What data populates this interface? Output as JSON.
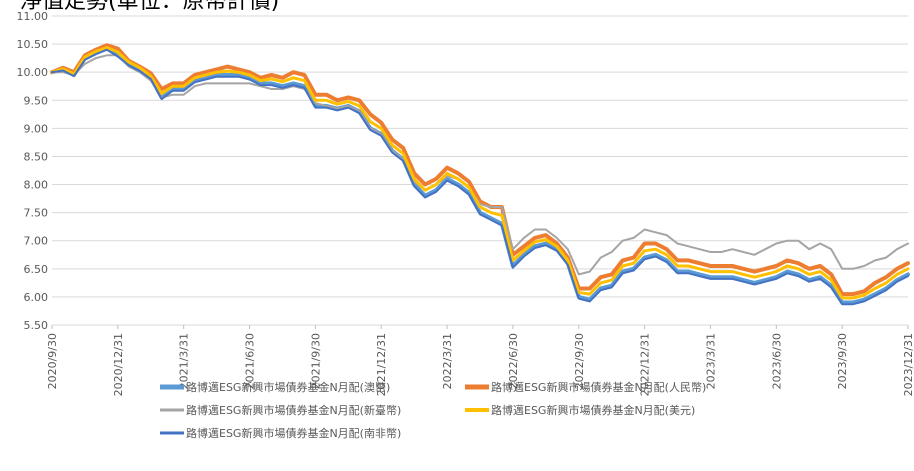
{
  "chart_data": {
    "type": "line",
    "title": "",
    "xlabel": "",
    "ylabel": "",
    "ylim": [
      5.5,
      11.0
    ],
    "yticks": [
      "11.00",
      "10.50",
      "10.00",
      "9.50",
      "9.00",
      "8.50",
      "8.00",
      "7.50",
      "7.00",
      "6.50",
      "6.00",
      "5.50"
    ],
    "x_tick_labels": [
      "2020/9/30",
      "2020/12/31",
      "2021/3/31",
      "2021/6/30",
      "2021/9/30",
      "2021/12/31",
      "2022/3/31",
      "2022/6/30",
      "2022/9/30",
      "2022/12/31",
      "2023/3/31",
      "2023/6/30",
      "2023/9/30",
      "2023/12/31"
    ],
    "grid": "horizontal",
    "legend_position": "bottom",
    "x": [
      "2020/9/30",
      "2020/10/15",
      "2020/10/31",
      "2020/11/15",
      "2020/11/30",
      "2020/12/15",
      "2020/12/31",
      "2021/1/15",
      "2021/1/31",
      "2021/2/15",
      "2021/2/28",
      "2021/3/15",
      "2021/3/31",
      "2021/4/15",
      "2021/4/30",
      "2021/5/15",
      "2021/5/31",
      "2021/6/15",
      "2021/6/30",
      "2021/7/15",
      "2021/7/31",
      "2021/8/15",
      "2021/8/31",
      "2021/9/15",
      "2021/9/30",
      "2021/10/15",
      "2021/10/31",
      "2021/11/15",
      "2021/11/30",
      "2021/12/15",
      "2021/12/31",
      "2022/1/15",
      "2022/1/31",
      "2022/2/15",
      "2022/2/28",
      "2022/3/15",
      "2022/3/31",
      "2022/4/15",
      "2022/4/30",
      "2022/5/15",
      "2022/5/31",
      "2022/6/15",
      "2022/6/30",
      "2022/7/15",
      "2022/7/31",
      "2022/8/15",
      "2022/8/31",
      "2022/9/15",
      "2022/9/30",
      "2022/10/15",
      "2022/10/31",
      "2022/11/15",
      "2022/11/30",
      "2022/12/15",
      "2022/12/31",
      "2023/1/15",
      "2023/1/31",
      "2023/2/15",
      "2023/2/28",
      "2023/3/15",
      "2023/3/31",
      "2023/4/15",
      "2023/4/30",
      "2023/5/15",
      "2023/5/31",
      "2023/6/15",
      "2023/6/30",
      "2023/7/15",
      "2023/7/31",
      "2023/8/15",
      "2023/8/31",
      "2023/9/15",
      "2023/9/30",
      "2023/10/15",
      "2023/10/31",
      "2023/11/15",
      "2023/11/30",
      "2023/12/15",
      "2023/12/31"
    ],
    "series": [
      {
        "name": "路博邁ESG新興市場債券基金N月配(澳幣)",
        "color": "#5B9BD5",
        "width": 4,
        "values": [
          10.0,
          10.05,
          9.95,
          10.25,
          10.35,
          10.42,
          10.3,
          10.15,
          10.05,
          9.9,
          9.55,
          9.7,
          9.7,
          9.85,
          9.9,
          9.95,
          9.95,
          9.95,
          9.9,
          9.8,
          9.8,
          9.75,
          9.8,
          9.75,
          9.4,
          9.4,
          9.35,
          9.4,
          9.3,
          9.0,
          8.9,
          8.6,
          8.45,
          8.0,
          7.8,
          7.9,
          8.1,
          8.0,
          7.85,
          7.5,
          7.4,
          7.3,
          6.55,
          6.75,
          6.9,
          6.95,
          6.85,
          6.6,
          6.0,
          5.95,
          6.15,
          6.2,
          6.45,
          6.5,
          6.7,
          6.75,
          6.65,
          6.45,
          6.45,
          6.4,
          6.35,
          6.35,
          6.35,
          6.3,
          6.25,
          6.3,
          6.35,
          6.45,
          6.4,
          6.3,
          6.35,
          6.2,
          5.9,
          5.9,
          5.95,
          6.05,
          6.15,
          6.3,
          6.4
        ]
      },
      {
        "name": "路博邁ESG新興市場債券基金N月配(人民幣)",
        "color": "#ED7D31",
        "width": 4,
        "values": [
          10.0,
          10.08,
          10.0,
          10.3,
          10.4,
          10.48,
          10.42,
          10.2,
          10.1,
          9.98,
          9.7,
          9.8,
          9.8,
          9.95,
          10.0,
          10.05,
          10.1,
          10.05,
          10.0,
          9.9,
          9.95,
          9.9,
          10.0,
          9.95,
          9.6,
          9.6,
          9.5,
          9.55,
          9.5,
          9.25,
          9.1,
          8.8,
          8.65,
          8.2,
          8.0,
          8.1,
          8.3,
          8.2,
          8.05,
          7.7,
          7.6,
          7.6,
          6.75,
          6.9,
          7.05,
          7.1,
          6.95,
          6.7,
          6.15,
          6.15,
          6.35,
          6.4,
          6.65,
          6.7,
          6.95,
          6.95,
          6.85,
          6.65,
          6.65,
          6.6,
          6.55,
          6.55,
          6.55,
          6.5,
          6.45,
          6.5,
          6.55,
          6.65,
          6.6,
          6.5,
          6.55,
          6.4,
          6.05,
          6.05,
          6.1,
          6.25,
          6.35,
          6.5,
          6.6
        ]
      },
      {
        "name": "路博邁ESG新興市場債券基金N月配(新臺幣)",
        "color": "#A5A5A5",
        "width": 2,
        "values": [
          10.0,
          10.0,
          9.95,
          10.15,
          10.25,
          10.3,
          10.3,
          10.1,
          10.0,
          9.85,
          9.55,
          9.6,
          9.6,
          9.75,
          9.8,
          9.8,
          9.8,
          9.8,
          9.8,
          9.75,
          9.7,
          9.7,
          9.75,
          9.7,
          9.45,
          9.4,
          9.35,
          9.4,
          9.3,
          9.0,
          8.9,
          8.6,
          8.45,
          8.05,
          7.9,
          8.0,
          8.15,
          8.1,
          7.95,
          7.65,
          7.6,
          7.6,
          6.85,
          7.05,
          7.2,
          7.2,
          7.05,
          6.85,
          6.4,
          6.45,
          6.7,
          6.8,
          7.0,
          7.05,
          7.2,
          7.15,
          7.1,
          6.95,
          6.9,
          6.85,
          6.8,
          6.8,
          6.85,
          6.8,
          6.75,
          6.85,
          6.95,
          7.0,
          7.0,
          6.85,
          6.95,
          6.85,
          6.5,
          6.5,
          6.55,
          6.65,
          6.7,
          6.85,
          6.95
        ]
      },
      {
        "name": "路博邁ESG新興市場債券基金N月配(美元)",
        "color": "#FFC000",
        "width": 3,
        "values": [
          10.0,
          10.06,
          9.97,
          10.27,
          10.37,
          10.44,
          10.36,
          10.18,
          10.08,
          9.93,
          9.62,
          9.75,
          9.75,
          9.9,
          9.95,
          10.0,
          10.02,
          10.0,
          9.95,
          9.85,
          9.88,
          9.83,
          9.9,
          9.85,
          9.5,
          9.5,
          9.43,
          9.48,
          9.4,
          9.12,
          9.0,
          8.7,
          8.55,
          8.1,
          7.9,
          8.0,
          8.2,
          8.1,
          7.95,
          7.6,
          7.5,
          7.45,
          6.65,
          6.82,
          6.98,
          7.02,
          6.9,
          6.65,
          6.08,
          6.05,
          6.25,
          6.3,
          6.55,
          6.6,
          6.82,
          6.85,
          6.75,
          6.55,
          6.55,
          6.5,
          6.45,
          6.45,
          6.45,
          6.4,
          6.35,
          6.4,
          6.45,
          6.55,
          6.5,
          6.4,
          6.45,
          6.3,
          5.98,
          5.98,
          6.03,
          6.15,
          6.25,
          6.4,
          6.5
        ]
      },
      {
        "name": "路博邁ESG新興市場債券基金N月配(南非幣)",
        "color": "#4472C4",
        "width": 2,
        "values": [
          10.0,
          10.03,
          9.93,
          10.22,
          10.32,
          10.4,
          10.28,
          10.12,
          10.02,
          9.88,
          9.52,
          9.67,
          9.67,
          9.82,
          9.87,
          9.92,
          9.92,
          9.92,
          9.87,
          9.77,
          9.77,
          9.72,
          9.77,
          9.72,
          9.37,
          9.37,
          9.32,
          9.37,
          9.27,
          8.97,
          8.87,
          8.57,
          8.42,
          7.97,
          7.77,
          7.87,
          8.07,
          7.97,
          7.82,
          7.47,
          7.37,
          7.27,
          6.52,
          6.72,
          6.87,
          6.92,
          6.82,
          6.57,
          5.97,
          5.92,
          6.12,
          6.17,
          6.42,
          6.47,
          6.67,
          6.72,
          6.62,
          6.42,
          6.42,
          6.37,
          6.32,
          6.32,
          6.32,
          6.27,
          6.22,
          6.27,
          6.32,
          6.42,
          6.37,
          6.27,
          6.32,
          6.17,
          5.87,
          5.87,
          5.92,
          6.02,
          6.12,
          6.27,
          6.37
        ]
      }
    ]
  },
  "header": {
    "title_fragment": "淨值走勢(單位：原幣計價)"
  }
}
